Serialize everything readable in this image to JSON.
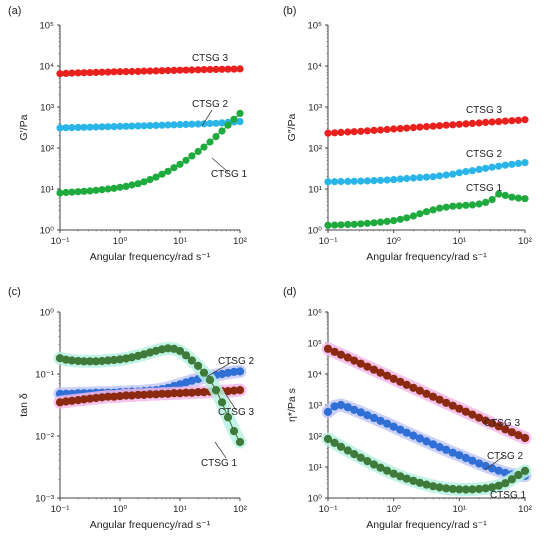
{
  "chart_data": [
    {
      "panel_label": "(a)",
      "type": "line",
      "scale": "log-log",
      "xlabel": "Angular frequency/rad s⁻¹",
      "ylabel": "G′/Pa",
      "xlim": [
        0.1,
        100
      ],
      "ylim": [
        1,
        100000
      ],
      "xticks": [
        "10⁻¹",
        "10⁰",
        "10¹",
        "10²"
      ],
      "yticks": [
        "10⁰",
        "10¹",
        "10²",
        "10³",
        "10⁴",
        "10⁵"
      ],
      "grid": false,
      "x": [
        0.1,
        0.126,
        0.158,
        0.2,
        0.251,
        0.316,
        0.398,
        0.501,
        0.631,
        0.794,
        1,
        1.26,
        1.58,
        2,
        2.51,
        3.16,
        3.98,
        5.01,
        6.31,
        7.94,
        10,
        12.6,
        15.8,
        20,
        25.1,
        31.6,
        39.8,
        50.1,
        63.1,
        79.4,
        100
      ],
      "series": [
        {
          "name": "CTSG 3",
          "color": "#e8201e",
          "halo": false,
          "values": [
            6500,
            6600,
            6700,
            6800,
            6850,
            6900,
            7000,
            7050,
            7100,
            7200,
            7250,
            7300,
            7350,
            7400,
            7500,
            7550,
            7600,
            7700,
            7750,
            7800,
            7900,
            7950,
            8000,
            8100,
            8150,
            8200,
            8250,
            8300,
            8350,
            8400,
            8500
          ]
        },
        {
          "name": "CTSG 2",
          "color": "#2ab5e8",
          "halo": false,
          "values": [
            310,
            312,
            315,
            318,
            320,
            322,
            325,
            328,
            330,
            333,
            336,
            339,
            342,
            345,
            348,
            352,
            356,
            360,
            364,
            368,
            372,
            376,
            380,
            385,
            390,
            395,
            400,
            410,
            420,
            430,
            440
          ]
        },
        {
          "name": "CTSG 1",
          "color": "#1eaa3c",
          "halo": false,
          "values": [
            8,
            8.2,
            8.4,
            8.6,
            8.8,
            9,
            9.3,
            9.6,
            10,
            10.4,
            11,
            11.6,
            12.5,
            13.5,
            15,
            17,
            19.5,
            23,
            27,
            33,
            40,
            50,
            64,
            82,
            105,
            140,
            190,
            260,
            360,
            500,
            700
          ]
        }
      ],
      "annotations": [
        {
          "text": "CTSG 3",
          "series": "CTSG 3"
        },
        {
          "text": "CTSG 2",
          "series": "CTSG 2"
        },
        {
          "text": "CTSG 1",
          "series": "CTSG 1"
        }
      ]
    },
    {
      "panel_label": "(b)",
      "type": "line",
      "scale": "log-log",
      "xlabel": "Angular frequency/rad s⁻¹",
      "ylabel": "G″/Pa",
      "xlim": [
        0.1,
        100
      ],
      "ylim": [
        1,
        100000
      ],
      "xticks": [
        "10⁻¹",
        "10⁰",
        "10¹",
        "10²"
      ],
      "yticks": [
        "10⁰",
        "10¹",
        "10²",
        "10³",
        "10⁴",
        "10⁵"
      ],
      "grid": false,
      "x": [
        0.1,
        0.126,
        0.158,
        0.2,
        0.251,
        0.316,
        0.398,
        0.501,
        0.631,
        0.794,
        1,
        1.26,
        1.58,
        2,
        2.51,
        3.16,
        3.98,
        5.01,
        6.31,
        7.94,
        10,
        12.6,
        15.8,
        20,
        25.1,
        31.6,
        39.8,
        50.1,
        63.1,
        79.4,
        100
      ],
      "series": [
        {
          "name": "CTSG 3",
          "color": "#e8201e",
          "halo": false,
          "values": [
            230,
            235,
            240,
            245,
            250,
            255,
            262,
            268,
            275,
            282,
            290,
            298,
            306,
            315,
            323,
            332,
            340,
            350,
            360,
            368,
            378,
            388,
            398,
            408,
            420,
            430,
            440,
            452,
            462,
            475,
            490
          ]
        },
        {
          "name": "CTSG 2",
          "color": "#2ab5e8",
          "halo": false,
          "values": [
            15,
            15.1,
            15.2,
            15.3,
            15.4,
            15.6,
            15.8,
            16,
            16.3,
            16.6,
            17,
            17.5,
            18,
            18.5,
            19,
            19.5,
            20,
            21,
            22,
            23,
            25,
            26.5,
            28,
            30,
            32,
            34,
            36,
            38,
            40,
            42,
            44
          ]
        },
        {
          "name": "CTSG 1",
          "color": "#1eaa3c",
          "halo": false,
          "values": [
            1.3,
            1.32,
            1.34,
            1.36,
            1.38,
            1.42,
            1.46,
            1.5,
            1.56,
            1.62,
            1.7,
            1.82,
            1.98,
            2.2,
            2.5,
            2.8,
            3.1,
            3.4,
            3.6,
            3.8,
            3.9,
            4,
            4.1,
            4.3,
            4.7,
            5.5,
            7.5,
            7,
            6.3,
            6,
            5.8
          ]
        }
      ],
      "annotations": [
        {
          "text": "CTSG 3",
          "series": "CTSG 3"
        },
        {
          "text": "CTSG 2",
          "series": "CTSG 2"
        },
        {
          "text": "CTSG 1",
          "series": "CTSG 1"
        }
      ]
    },
    {
      "panel_label": "(c)",
      "type": "line",
      "scale": "log-log",
      "xlabel": "Angular frequency/rad s⁻¹",
      "ylabel": "tan δ",
      "xlim": [
        0.1,
        100
      ],
      "ylim": [
        0.001,
        1
      ],
      "xticks": [
        "10⁻¹",
        "10⁰",
        "10¹",
        "10²"
      ],
      "yticks": [
        "10⁻³",
        "10⁻²",
        "10⁻¹",
        "10⁰"
      ],
      "grid": false,
      "x": [
        0.1,
        0.126,
        0.158,
        0.2,
        0.251,
        0.316,
        0.398,
        0.501,
        0.631,
        0.794,
        1,
        1.26,
        1.58,
        2,
        2.51,
        3.16,
        3.98,
        5.01,
        6.31,
        7.94,
        10,
        12.6,
        15.8,
        20,
        25.1,
        31.6,
        39.8,
        50.1,
        63.1,
        79.4,
        100
      ],
      "series": [
        {
          "name": "CTSG 2",
          "color": "#2f6fd6",
          "halo": "#c2c8f7",
          "values": [
            0.048,
            0.048,
            0.048,
            0.049,
            0.049,
            0.049,
            0.05,
            0.05,
            0.05,
            0.05,
            0.051,
            0.051,
            0.052,
            0.052,
            0.053,
            0.054,
            0.055,
            0.057,
            0.06,
            0.064,
            0.068,
            0.073,
            0.078,
            0.083,
            0.088,
            0.092,
            0.096,
            0.1,
            0.104,
            0.108,
            0.11
          ]
        },
        {
          "name": "CTSG 3",
          "color": "#8b2a10",
          "halo": "#f3b8e8",
          "values": [
            0.035,
            0.036,
            0.037,
            0.038,
            0.039,
            0.04,
            0.041,
            0.042,
            0.043,
            0.043,
            0.044,
            0.045,
            0.045,
            0.046,
            0.046,
            0.047,
            0.047,
            0.048,
            0.048,
            0.049,
            0.049,
            0.05,
            0.05,
            0.051,
            0.051,
            0.052,
            0.052,
            0.053,
            0.053,
            0.054,
            0.055
          ]
        },
        {
          "name": "CTSG 1",
          "color": "#3f7a3a",
          "halo": "#b7f1e2",
          "values": [
            0.18,
            0.17,
            0.165,
            0.162,
            0.16,
            0.16,
            0.16,
            0.162,
            0.165,
            0.168,
            0.172,
            0.178,
            0.186,
            0.196,
            0.208,
            0.222,
            0.237,
            0.25,
            0.26,
            0.255,
            0.235,
            0.2,
            0.165,
            0.135,
            0.105,
            0.08,
            0.055,
            0.035,
            0.02,
            0.012,
            0.008
          ]
        }
      ],
      "annotations": [
        {
          "text": "CTSG 2",
          "series": "CTSG 2"
        },
        {
          "text": "CTSG 3",
          "series": "CTSG 3"
        },
        {
          "text": "CTSG 1",
          "series": "CTSG 1"
        }
      ]
    },
    {
      "panel_label": "(d)",
      "type": "line",
      "scale": "log-log",
      "xlabel": "Angular frequency/rad s⁻¹",
      "ylabel": "η*/Pa s",
      "xlim": [
        0.1,
        100
      ],
      "ylim": [
        1,
        1000000
      ],
      "xticks": [
        "10⁻¹",
        "10⁰",
        "10¹",
        "10²"
      ],
      "yticks": [
        "10⁰",
        "10¹",
        "10²",
        "10³",
        "10⁴",
        "10⁵",
        "10⁶"
      ],
      "grid": false,
      "x": [
        0.1,
        0.126,
        0.158,
        0.2,
        0.251,
        0.316,
        0.398,
        0.501,
        0.631,
        0.794,
        1,
        1.26,
        1.58,
        2,
        2.51,
        3.16,
        3.98,
        5.01,
        6.31,
        7.94,
        10,
        12.6,
        15.8,
        20,
        25.1,
        31.6,
        39.8,
        50.1,
        63.1,
        79.4,
        100
      ],
      "series": [
        {
          "name": "CTSG 3",
          "color": "#8b2a10",
          "halo": "#f3b8e8",
          "values": [
            65000,
            52000,
            42000,
            34000,
            27000,
            21500,
            17200,
            13800,
            11000,
            8800,
            7000,
            5600,
            4500,
            3600,
            2900,
            2300,
            1850,
            1480,
            1180,
            950,
            760,
            610,
            490,
            390,
            315,
            255,
            205,
            165,
            133,
            107,
            86
          ]
        },
        {
          "name": "CTSG 2",
          "color": "#2f6fd6",
          "halo": "#c2c8f7",
          "values": [
            600,
            900,
            1000,
            850,
            700,
            580,
            470,
            380,
            310,
            250,
            200,
            160,
            128,
            103,
            83,
            67,
            54,
            44,
            36,
            29,
            24,
            19.5,
            16,
            13,
            10.8,
            9,
            7.6,
            6.5,
            5.8,
            5.4,
            5.2
          ]
        },
        {
          "name": "CTSG 1",
          "color": "#3f7a3a",
          "halo": "#b7f1e2",
          "values": [
            80,
            60,
            45,
            34,
            26,
            20,
            15.5,
            12,
            9.5,
            7.6,
            6.1,
            5,
            4.2,
            3.6,
            3.1,
            2.7,
            2.4,
            2.2,
            2.05,
            1.95,
            1.9,
            1.88,
            1.9,
            1.95,
            2.05,
            2.2,
            2.5,
            3,
            4,
            5.5,
            7.5
          ]
        }
      ],
      "annotations": [
        {
          "text": "CTSG 3",
          "series": "CTSG 3"
        },
        {
          "text": "CTSG 2",
          "series": "CTSG 2"
        },
        {
          "text": "CTSG 1",
          "series": "CTSG 1"
        }
      ]
    }
  ]
}
